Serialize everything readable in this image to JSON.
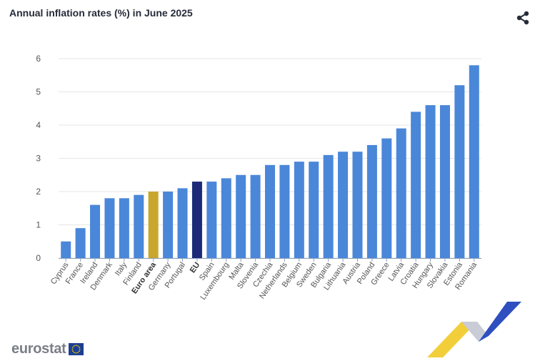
{
  "header": {
    "title": "Annual inflation rates (%) in June 2025"
  },
  "icons": {
    "share": "share-icon"
  },
  "footer": {
    "logo_text": "eurostat"
  },
  "colors": {
    "default": "#4a87d9",
    "euro_area": "#c9a62c",
    "eu": "#1c2a78"
  },
  "chart_data": {
    "type": "bar",
    "title": "Annual inflation rates (%) in June 2025",
    "xlabel": "",
    "ylabel": "",
    "ylim": [
      0,
      6
    ],
    "yticks": [
      0,
      1,
      2,
      3,
      4,
      5,
      6
    ],
    "grid": true,
    "categories": [
      "Cyprus",
      "France",
      "Ireland",
      "Denmark",
      "Italy",
      "Finland",
      "Euro area",
      "Germany",
      "Portugal",
      "EU",
      "Spain",
      "Luxembourg",
      "Malta",
      "Slovenia",
      "Czechia",
      "Netherlands",
      "Belgium",
      "Sweden",
      "Bulgaria",
      "Lithuania",
      "Austria",
      "Poland",
      "Greece",
      "Latvia",
      "Croatia",
      "Hungary",
      "Slovakia",
      "Estonia",
      "Romania"
    ],
    "values": [
      0.5,
      0.9,
      1.6,
      1.8,
      1.8,
      1.9,
      2.0,
      2.0,
      2.1,
      2.3,
      2.3,
      2.4,
      2.5,
      2.5,
      2.8,
      2.8,
      2.9,
      2.9,
      3.1,
      3.2,
      3.2,
      3.4,
      3.6,
      3.9,
      4.4,
      4.6,
      4.6,
      5.2,
      5.8
    ],
    "highlighted": {
      "Euro area": "euro_area",
      "EU": "eu"
    }
  }
}
